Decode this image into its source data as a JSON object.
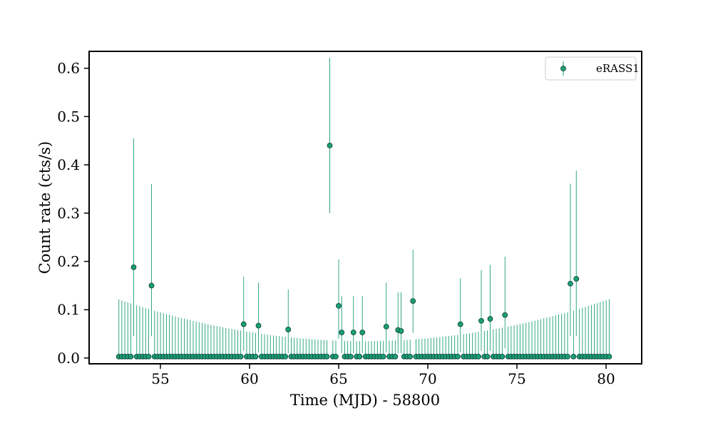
{
  "chart_data": {
    "type": "scatter",
    "title": "",
    "xlabel": "Time (MJD) - 58800",
    "ylabel": "Count rate (cts/s)",
    "xlim": [
      51.0,
      82.0
    ],
    "ylim": [
      -0.012,
      0.635
    ],
    "x_ticks": [
      55,
      60,
      65,
      70,
      75,
      80
    ],
    "x_tick_labels": [
      "55",
      "60",
      "65",
      "70",
      "75",
      "80"
    ],
    "y_ticks": [
      0.0,
      0.1,
      0.2,
      0.3,
      0.4,
      0.5,
      0.6
    ],
    "y_tick_labels": [
      "0.0",
      "0.1",
      "0.2",
      "0.3",
      "0.4",
      "0.5",
      "0.6"
    ],
    "grid": false,
    "legend": {
      "position": "top-right",
      "entries": [
        "eRASS1"
      ]
    },
    "colors": {
      "marker": "#1b9e77",
      "marker_edge": "#0b3d2c",
      "errorbar": "#1b9e77"
    },
    "series": [
      {
        "name": "eRASS1",
        "x_start": 52.67,
        "x_step": 0.1667,
        "n_points": 166,
        "baseline_value": 0.003,
        "baseline_upper_error_profile": {
          "edge_value": 0.122,
          "center_value": 0.035,
          "center_x": 66.4
        },
        "detections": [
          {
            "x": 53.5,
            "y": 0.188,
            "ylo": 0.045,
            "yhi": 0.455
          },
          {
            "x": 54.5,
            "y": 0.15,
            "ylo": 0.045,
            "yhi": 0.36
          },
          {
            "x": 59.67,
            "y": 0.07,
            "ylo": 0.015,
            "yhi": 0.168
          },
          {
            "x": 60.5,
            "y": 0.067,
            "ylo": 0.012,
            "yhi": 0.156
          },
          {
            "x": 62.17,
            "y": 0.059,
            "ylo": 0.01,
            "yhi": 0.142
          },
          {
            "x": 64.5,
            "y": 0.44,
            "ylo": 0.3,
            "yhi": 0.622
          },
          {
            "x": 65.0,
            "y": 0.108,
            "ylo": 0.04,
            "yhi": 0.204
          },
          {
            "x": 65.17,
            "y": 0.053,
            "ylo": 0.01,
            "yhi": 0.128
          },
          {
            "x": 65.83,
            "y": 0.053,
            "ylo": 0.01,
            "yhi": 0.128
          },
          {
            "x": 66.33,
            "y": 0.053,
            "ylo": 0.01,
            "yhi": 0.128
          },
          {
            "x": 67.67,
            "y": 0.065,
            "ylo": 0.012,
            "yhi": 0.156
          },
          {
            "x": 68.33,
            "y": 0.058,
            "ylo": 0.01,
            "yhi": 0.136
          },
          {
            "x": 68.5,
            "y": 0.056,
            "ylo": 0.01,
            "yhi": 0.136
          },
          {
            "x": 69.17,
            "y": 0.118,
            "ylo": 0.052,
            "yhi": 0.224
          },
          {
            "x": 71.83,
            "y": 0.07,
            "ylo": 0.012,
            "yhi": 0.165
          },
          {
            "x": 73.0,
            "y": 0.077,
            "ylo": 0.015,
            "yhi": 0.182
          },
          {
            "x": 73.5,
            "y": 0.081,
            "ylo": 0.015,
            "yhi": 0.193
          },
          {
            "x": 74.33,
            "y": 0.089,
            "ylo": 0.02,
            "yhi": 0.21
          },
          {
            "x": 78.0,
            "y": 0.154,
            "ylo": 0.045,
            "yhi": 0.361
          },
          {
            "x": 78.33,
            "y": 0.164,
            "ylo": 0.045,
            "yhi": 0.388
          }
        ]
      }
    ]
  }
}
